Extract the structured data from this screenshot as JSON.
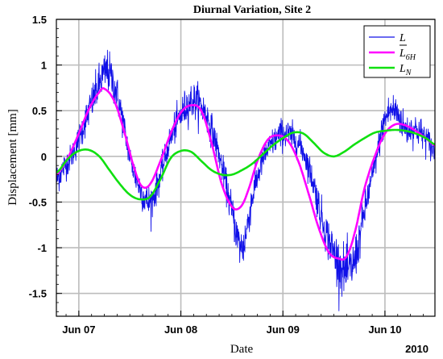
{
  "chart_data": {
    "type": "line",
    "title": "Diurnal Variation, Site 2",
    "xlabel": "Date",
    "ylabel": "Displacement [mm]",
    "x_unit": "days (day 0 = Jun 07 00:00, 2010)",
    "xlim": [
      -0.22,
      3.49
    ],
    "ylim": [
      -1.75,
      1.5
    ],
    "grid": true,
    "legend_position": "top-right",
    "year_label": "2010",
    "x_ticks": [
      {
        "value": 0,
        "label": "Jun 07"
      },
      {
        "value": 1,
        "label": "Jun 08"
      },
      {
        "value": 2,
        "label": "Jun 09"
      },
      {
        "value": 3,
        "label": "Jun 10"
      }
    ],
    "y_ticks": [
      {
        "value": 1.5,
        "label": "1.5"
      },
      {
        "value": 1,
        "label": "1"
      },
      {
        "value": 0.5,
        "label": "0.5"
      },
      {
        "value": 0,
        "label": "0"
      },
      {
        "value": -0.5,
        "label": "-0.5"
      },
      {
        "value": -1,
        "label": "-1"
      },
      {
        "value": -1.5,
        "label": "-1.5"
      }
    ],
    "series": [
      {
        "name": "L",
        "legend_main": "L",
        "legend_sub": "",
        "legend_overbar": false,
        "color": "#1010e8",
        "style": "noisy raw measurement",
        "x": [
          -0.22,
          -0.15,
          -0.05,
          0.05,
          0.15,
          0.25,
          0.3,
          0.4,
          0.5,
          0.6,
          0.7,
          0.8,
          0.9,
          1.0,
          1.1,
          1.2,
          1.3,
          1.4,
          1.5,
          1.6,
          1.7,
          1.8,
          1.9,
          2.0,
          2.1,
          2.2,
          2.3,
          2.4,
          2.5,
          2.6,
          2.7,
          2.8,
          2.9,
          3.0,
          3.1,
          3.2,
          3.3,
          3.4,
          3.49
        ],
        "y": [
          -0.25,
          -0.12,
          0.05,
          0.35,
          0.65,
          0.9,
          0.9,
          0.55,
          0.0,
          -0.35,
          -0.5,
          -0.2,
          0.2,
          0.45,
          0.6,
          0.55,
          0.3,
          -0.1,
          -0.6,
          -1.0,
          -0.45,
          -0.05,
          0.15,
          0.25,
          0.2,
          0.05,
          -0.3,
          -0.75,
          -1.05,
          -1.25,
          -1.15,
          -0.6,
          -0.1,
          0.4,
          0.5,
          0.3,
          0.3,
          0.2,
          0.05
        ]
      },
      {
        "name": "L_6H",
        "legend_main": "L",
        "legend_sub": "6H",
        "legend_overbar": true,
        "color": "#ff00ff",
        "style": "smoothed",
        "x": [
          -0.22,
          -0.1,
          0.0,
          0.1,
          0.2,
          0.25,
          0.35,
          0.45,
          0.55,
          0.62,
          0.7,
          0.8,
          0.9,
          1.0,
          1.1,
          1.2,
          1.3,
          1.4,
          1.5,
          1.58,
          1.65,
          1.75,
          1.85,
          1.95,
          2.05,
          2.15,
          2.25,
          2.35,
          2.45,
          2.55,
          2.62,
          2.7,
          2.8,
          2.9,
          3.0,
          3.1,
          3.2,
          3.3,
          3.4,
          3.49
        ],
        "y": [
          -0.2,
          0.0,
          0.25,
          0.52,
          0.7,
          0.74,
          0.6,
          0.25,
          -0.15,
          -0.33,
          -0.3,
          -0.05,
          0.25,
          0.48,
          0.56,
          0.5,
          0.15,
          -0.3,
          -0.55,
          -0.56,
          -0.4,
          -0.05,
          0.18,
          0.23,
          0.17,
          -0.05,
          -0.4,
          -0.78,
          -1.05,
          -1.12,
          -1.1,
          -0.85,
          -0.35,
          0.0,
          0.25,
          0.35,
          0.34,
          0.28,
          0.2,
          0.12
        ]
      },
      {
        "name": "L_N",
        "legend_main": "L",
        "legend_sub": "N",
        "legend_overbar": false,
        "color": "#10e010",
        "style": "smooth",
        "x": [
          -0.22,
          -0.1,
          0.0,
          0.1,
          0.2,
          0.3,
          0.4,
          0.5,
          0.6,
          0.7,
          0.8,
          0.9,
          1.0,
          1.1,
          1.2,
          1.3,
          1.4,
          1.5,
          1.6,
          1.7,
          1.8,
          1.9,
          2.0,
          2.1,
          2.2,
          2.3,
          2.4,
          2.5,
          2.6,
          2.7,
          2.8,
          2.9,
          3.0,
          3.1,
          3.2,
          3.3,
          3.4,
          3.49
        ],
        "y": [
          -0.18,
          -0.02,
          0.06,
          0.07,
          0.0,
          -0.15,
          -0.3,
          -0.42,
          -0.47,
          -0.44,
          -0.25,
          -0.02,
          0.06,
          0.05,
          -0.05,
          -0.15,
          -0.2,
          -0.2,
          -0.15,
          -0.08,
          0.02,
          0.12,
          0.2,
          0.26,
          0.25,
          0.15,
          0.04,
          0.0,
          0.05,
          0.13,
          0.2,
          0.26,
          0.28,
          0.29,
          0.28,
          0.25,
          0.2,
          0.13
        ]
      }
    ]
  }
}
